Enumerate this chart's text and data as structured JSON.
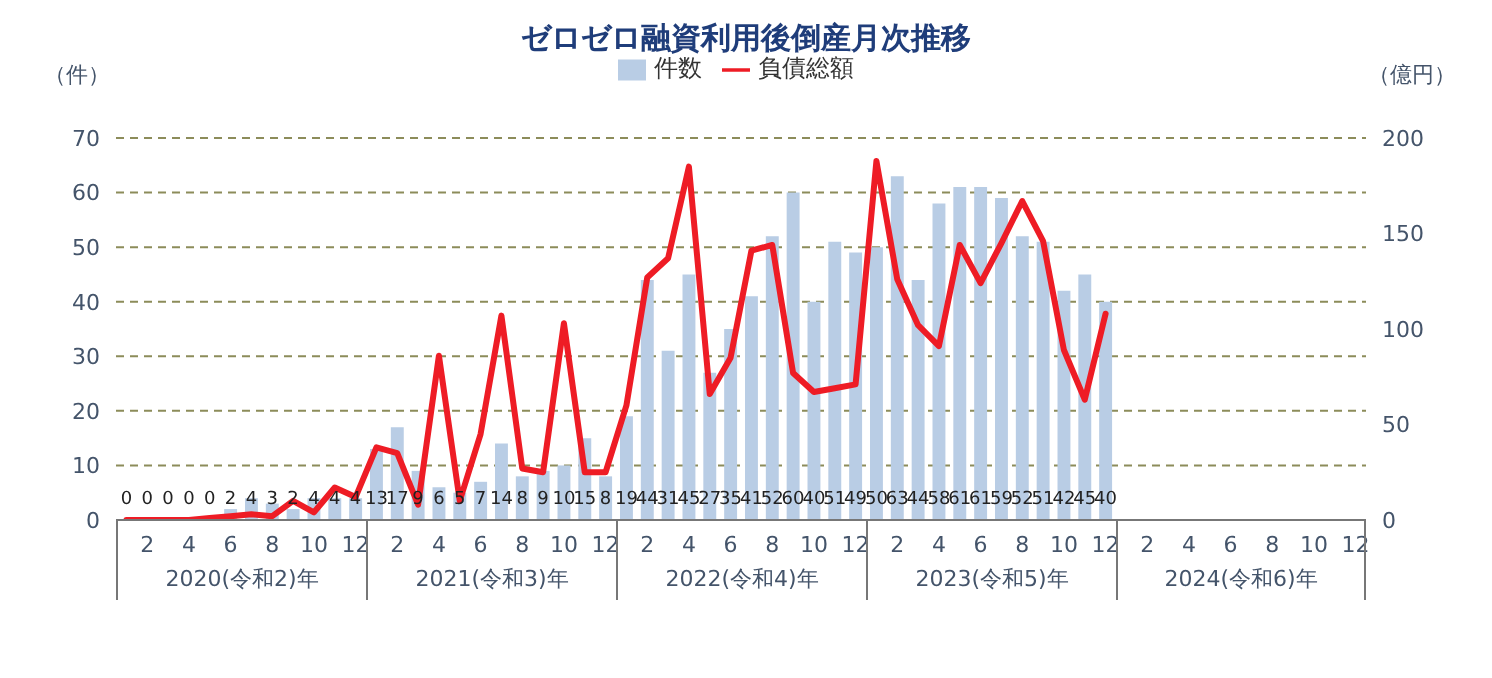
{
  "chart_data": {
    "type": "bar",
    "title": "ゼロゼロ融資利用後倒産月次推移",
    "ylabel": "（件）",
    "y2label": "（億円）",
    "categories": [
      null,
      "2",
      null,
      "4",
      null,
      "6",
      null,
      "8",
      null,
      "10",
      null,
      "12",
      null,
      "2",
      null,
      "4",
      null,
      "6",
      null,
      "8",
      null,
      "10",
      null,
      "12",
      null,
      "2",
      null,
      "4",
      null,
      "6",
      null,
      "8",
      null,
      "10",
      null,
      "12",
      null,
      "2",
      null,
      "4",
      null,
      "6",
      null,
      "8",
      null,
      "10",
      null,
      "12",
      null,
      "2",
      null,
      "4",
      null,
      "6",
      null,
      "8",
      null,
      "10",
      null,
      "12"
    ],
    "annotations": [
      "2020(令和2)年",
      "2021(令和3)年",
      "2022(令和4)年",
      "2023(令和5)年",
      "2024(令和6)年"
    ],
    "series": [
      {
        "name": "件数",
        "color": "#b9cde5",
        "value_labels": [
          "0",
          "0",
          "0",
          "0",
          "0",
          "2",
          "4",
          "3",
          "2",
          "4",
          "4",
          "4",
          "13",
          "17",
          "9",
          "6",
          "5",
          "7",
          "14",
          "8",
          "9",
          "10",
          "15",
          "8",
          "19",
          "44",
          "31",
          "45",
          "27",
          "35",
          "41",
          "52",
          "60",
          "40",
          "51",
          "49",
          "50",
          "63",
          "44",
          "58",
          "61",
          "61",
          "59",
          "52",
          "51",
          "42",
          "45",
          "40",
          null,
          null,
          null,
          null,
          null,
          null,
          null,
          null,
          null,
          null,
          null,
          null
        ],
        "values": [
          0,
          0,
          0,
          0,
          0,
          2,
          4,
          3,
          2,
          4,
          4,
          4,
          13,
          17,
          9,
          6,
          5,
          7,
          14,
          8,
          9,
          10,
          15,
          8,
          19,
          44,
          31,
          45,
          27,
          35,
          41,
          52,
          60,
          40,
          51,
          49,
          50,
          63,
          44,
          58,
          61,
          61,
          59,
          52,
          51,
          42,
          45,
          40,
          null,
          null,
          null,
          null,
          null,
          null,
          null,
          null,
          null,
          null,
          null,
          null
        ]
      },
      {
        "name": "負債総額",
        "type": "line",
        "axis": "y2",
        "color": "#ee1c25",
        "values": [
          0,
          0,
          0,
          0,
          1,
          2,
          3,
          2,
          10,
          4,
          17,
          12,
          38,
          35,
          8,
          86,
          10,
          45,
          107,
          27,
          25,
          103,
          25,
          25,
          60,
          127,
          137,
          185,
          66,
          85,
          141,
          144,
          77,
          67,
          69,
          71,
          188,
          126,
          102,
          91,
          144,
          124,
          145,
          167,
          146,
          89,
          63,
          108,
          null,
          null,
          null,
          null,
          null,
          null,
          null,
          null,
          null,
          null,
          null,
          null
        ]
      }
    ],
    "ylim": [
      0,
      70
    ],
    "yticks": [
      0,
      10,
      20,
      30,
      40,
      50,
      60,
      70
    ],
    "y2lim": [
      0,
      200
    ],
    "y2ticks": [
      0,
      50,
      100,
      150,
      200
    ],
    "grid": "y",
    "legend": "top"
  }
}
